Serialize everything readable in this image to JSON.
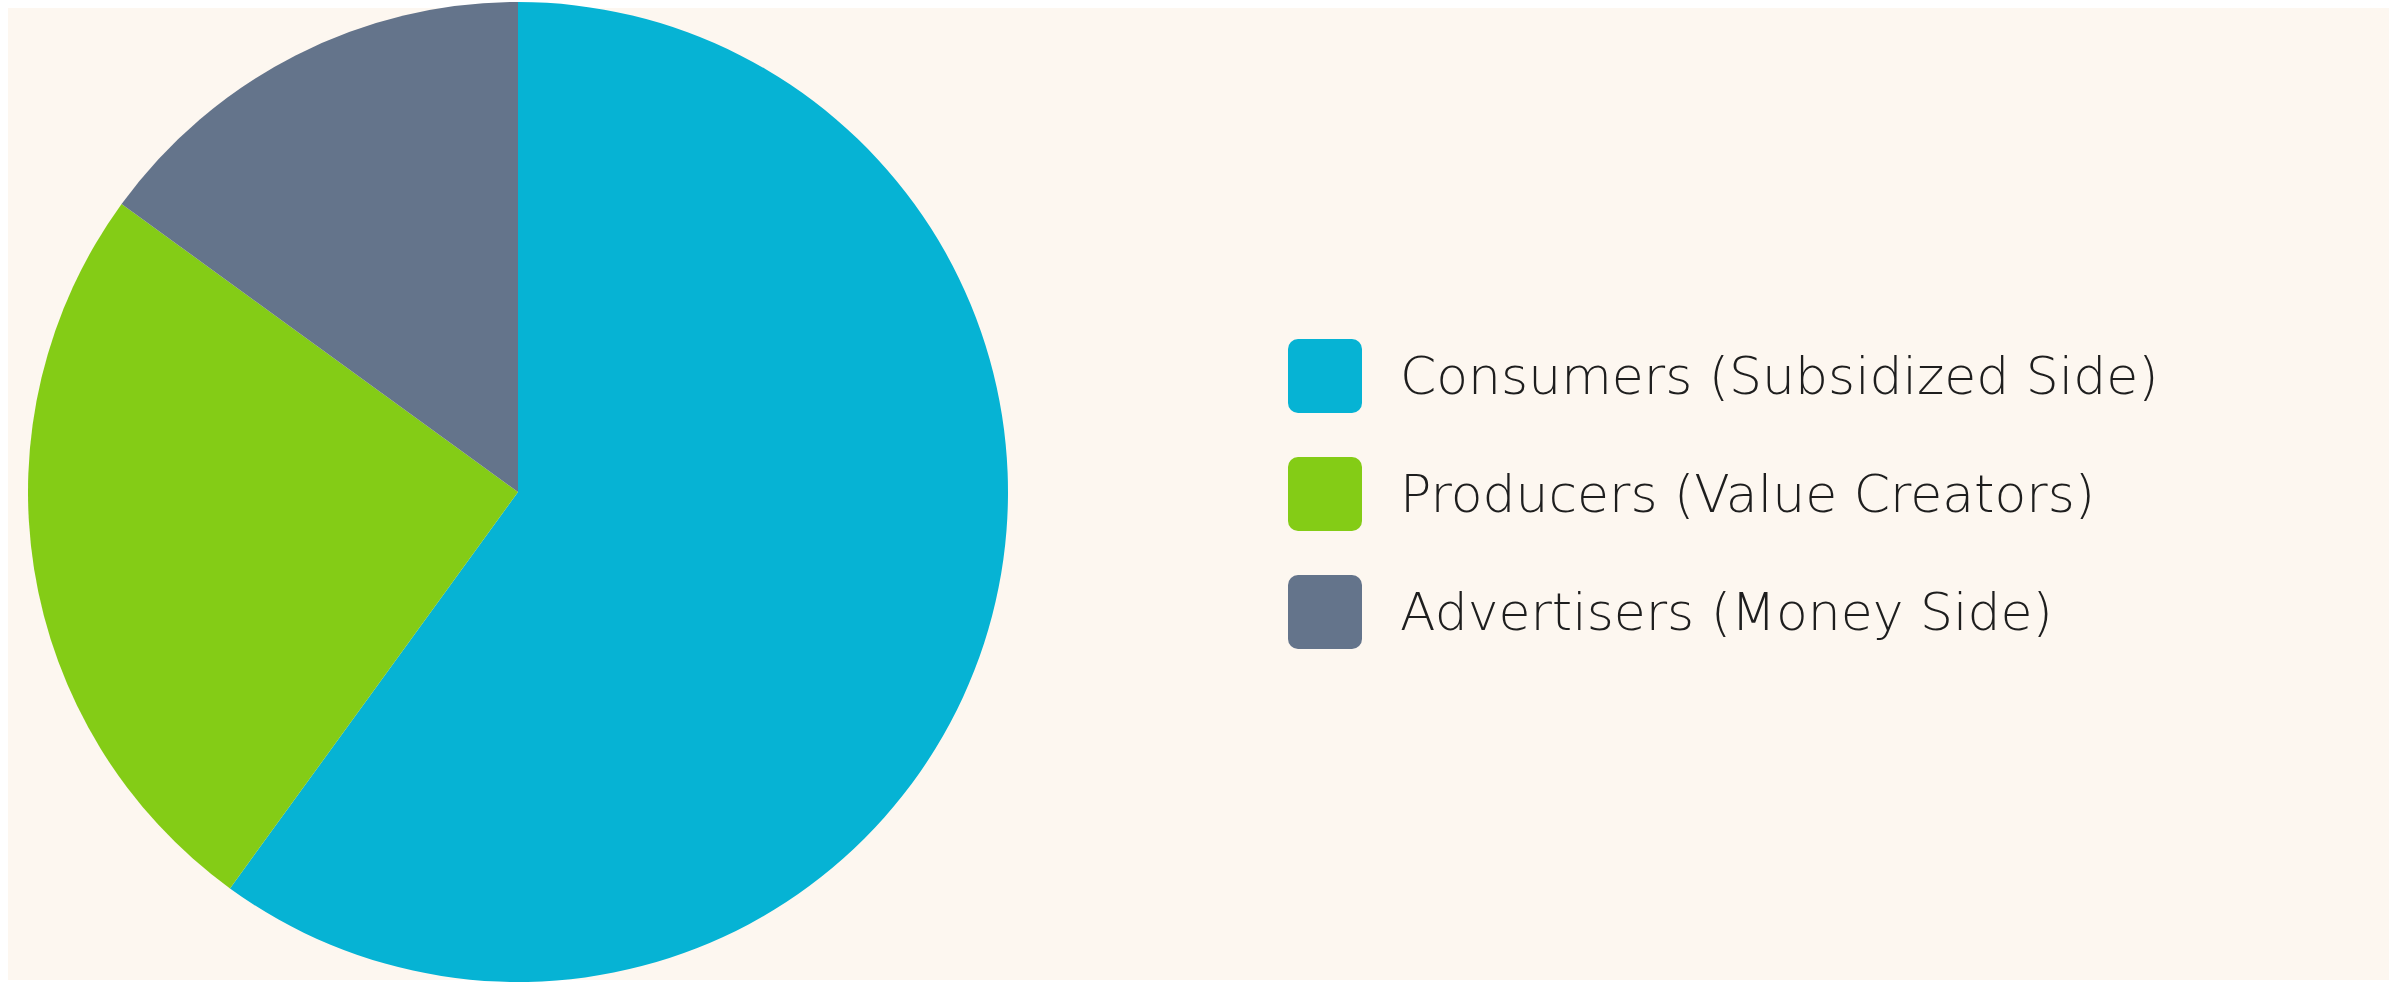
{
  "chart_data": {
    "type": "pie",
    "categories": [
      "Consumers (Subsidized Side)",
      "Producers (Value Creators)",
      "Advertisers (Money Side)"
    ],
    "values": [
      60,
      25,
      15
    ],
    "colors": [
      "#06b3d4",
      "#84cc16",
      "#64748b"
    ],
    "legend": "right"
  }
}
